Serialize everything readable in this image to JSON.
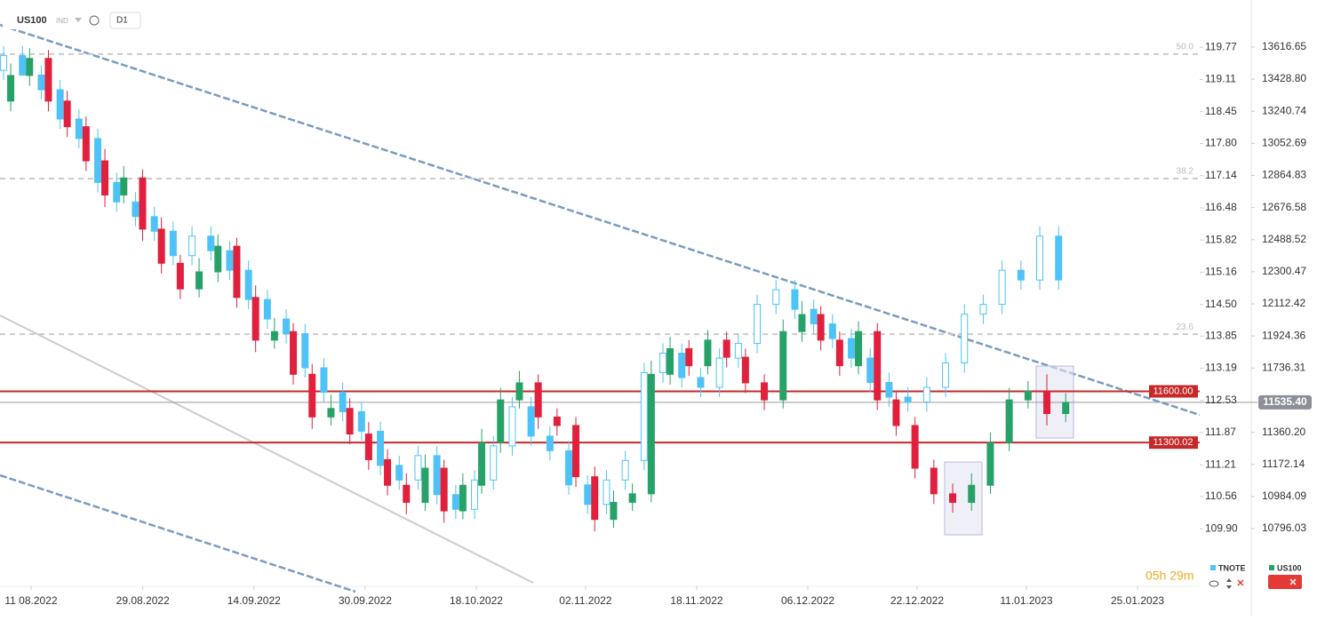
{
  "chart_data": {
    "type": "candlestick",
    "symbol": "US100",
    "market": "IND",
    "timeframe": "D1",
    "countdown": "05h 29m",
    "xlim": [
      -0.38,
      63.3
    ],
    "xticks": [
      {
        "value": 1.27,
        "label": "11 08.2022"
      },
      {
        "value": 7.2,
        "label": "29.08.2022"
      },
      {
        "value": 13.1,
        "label": "14.09.2022"
      },
      {
        "value": 19.0,
        "label": "30.09.2022"
      },
      {
        "value": 24.9,
        "label": "18.10.2022"
      },
      {
        "value": 30.7,
        "label": "02.11.2022"
      },
      {
        "value": 36.6,
        "label": "18.11.2022"
      },
      {
        "value": 42.5,
        "label": "06.12.2022"
      },
      {
        "value": 48.3,
        "label": "22.12.2022"
      },
      {
        "value": 54.1,
        "label": "11.01.2023"
      },
      {
        "value": 60.0,
        "label": "25.01.2023"
      }
    ],
    "ylim": [
      10458,
      13892
    ],
    "yticks": [
      13616.65,
      {
        "value": 13428.8,
        "label": "13428.80"
      },
      13240.74,
      13052.69,
      12864.83,
      12676.58,
      12488.52,
      12300.47,
      12112.42,
      11924.36,
      11736.31,
      {
        "value": 11360.2,
        "label": "11360.20"
      },
      11172.14,
      10984.09,
      10796.03
    ],
    "y2lim": [
      108.72,
      120.74
    ],
    "y2ticks": [
      119.77,
      119.11,
      118.45,
      {
        "value": 117.8,
        "label": "117.80"
      },
      117.14,
      116.48,
      115.82,
      115.16,
      {
        "value": 114.5,
        "label": "114.50"
      },
      113.85,
      113.19,
      112.53,
      111.87,
      111.21,
      110.56,
      {
        "value": 109.9,
        "label": "109.90"
      }
    ],
    "grid": false,
    "levels": [
      {
        "value": 11600,
        "label": "11600.00",
        "color": "#c62828"
      },
      {
        "value": 11300.02,
        "label": "11300.02",
        "color": "#c62828"
      }
    ],
    "last_price": {
      "value": 11535.4,
      "label": "11535.40"
    },
    "fib_levels": [
      {
        "level": 13575,
        "label": "50.0"
      },
      {
        "level": 12846,
        "label": "38.2"
      },
      {
        "level": 11935,
        "label": "23.6"
      }
    ],
    "series": [
      {
        "name": "TNOTE",
        "axis": "y2",
        "color": "#4fc3f7",
        "open": [
          119.3,
          119.6,
          119.2,
          118.9,
          118.3,
          117.9,
          117.0,
          116.6,
          116.3,
          116.0,
          115.5,
          115.9,
          115.6,
          115.2,
          114.6,
          114.2,
          113.9,
          113.2,
          112.7,
          112.3,
          111.9,
          111.2,
          110.9,
          111.4,
          110.6,
          110.3,
          110.9,
          111.6,
          112.4,
          111.8,
          111.5,
          110.8,
          110.4,
          110.9,
          111.3,
          113.1,
          113.5,
          113.0,
          112.8,
          113.4,
          113.7,
          114.5,
          114.8,
          114.4,
          114.1,
          113.8,
          113.4,
          112.9,
          112.6,
          112.5,
          112.8,
          113.3,
          114.3,
          114.5,
          115.2,
          115.0,
          115.9
        ],
        "high": [
          119.8,
          119.8,
          119.4,
          119.1,
          118.5,
          118.1,
          117.2,
          116.8,
          116.5,
          116.2,
          116.1,
          116.1,
          115.8,
          115.4,
          114.8,
          114.4,
          114.1,
          113.4,
          112.9,
          112.5,
          112.1,
          111.4,
          111.6,
          111.6,
          110.8,
          111.1,
          111.8,
          112.6,
          112.6,
          112.0,
          111.7,
          111.0,
          111.1,
          111.5,
          113.3,
          113.7,
          113.7,
          113.2,
          113.6,
          113.9,
          114.7,
          115.0,
          115.0,
          114.6,
          114.3,
          114.0,
          113.6,
          113.1,
          112.8,
          113.0,
          113.5,
          114.5,
          114.7,
          115.4,
          115.4,
          116.1,
          116.1
        ],
        "low": [
          119.1,
          119.4,
          118.7,
          118.1,
          117.7,
          116.8,
          116.4,
          116.1,
          115.8,
          115.3,
          115.3,
          115.4,
          115.0,
          114.4,
          114.0,
          113.7,
          113.0,
          112.5,
          112.1,
          111.7,
          111.0,
          110.7,
          110.7,
          110.4,
          110.1,
          110.1,
          110.7,
          111.4,
          111.6,
          111.3,
          110.6,
          110.2,
          110.2,
          110.7,
          111.1,
          112.9,
          112.8,
          112.6,
          112.6,
          113.2,
          113.5,
          114.3,
          114.2,
          113.9,
          113.6,
          113.2,
          112.7,
          112.4,
          112.3,
          112.3,
          112.6,
          113.1,
          114.1,
          114.3,
          114.8,
          114.8,
          114.8
        ],
        "close": [
          119.6,
          119.2,
          118.9,
          118.3,
          117.9,
          117.0,
          116.6,
          116.3,
          116.0,
          115.5,
          115.9,
          115.6,
          115.2,
          114.6,
          114.2,
          113.9,
          113.2,
          112.7,
          112.3,
          111.9,
          111.2,
          110.9,
          111.4,
          110.6,
          110.3,
          110.9,
          111.6,
          112.4,
          111.8,
          111.5,
          110.8,
          110.4,
          110.9,
          111.3,
          113.1,
          113.5,
          113.0,
          112.8,
          113.4,
          113.7,
          114.5,
          114.8,
          114.4,
          114.1,
          113.8,
          113.4,
          112.9,
          112.6,
          112.5,
          112.8,
          113.3,
          114.3,
          114.5,
          115.2,
          115.0,
          115.9,
          115.0
        ]
      },
      {
        "name": "US100",
        "axis": "y",
        "color": "#26a269",
        "down_color": "#e0203c",
        "open": [
          13300,
          13450,
          13550,
          13300,
          13150,
          12950,
          12750,
          12850,
          12550,
          12350,
          12200,
          12300,
          12450,
          12150,
          11900,
          11950,
          11700,
          11450,
          11500,
          11350,
          11200,
          11050,
          10950,
          11150,
          10900,
          11050,
          11300,
          11550,
          11650,
          11450,
          11400,
          11100,
          10850,
          10950,
          11000,
          11700,
          11850,
          11750,
          11900,
          11800,
          11650,
          11550,
          11950,
          12050,
          11900,
          11750,
          11950,
          11550,
          11400,
          11150,
          11000,
          10950,
          11050,
          11300,
          11550,
          11600,
          11470
        ],
        "high": [
          13520,
          13610,
          13600,
          13360,
          13210,
          13020,
          12920,
          12900,
          12620,
          12400,
          12380,
          12520,
          12500,
          12220,
          12030,
          12000,
          11760,
          11580,
          11560,
          11420,
          11260,
          11120,
          11230,
          11200,
          11120,
          11380,
          11620,
          11720,
          11700,
          11500,
          11450,
          11160,
          11020,
          11060,
          11780,
          11920,
          11900,
          11960,
          11950,
          11850,
          11700,
          12020,
          12130,
          12100,
          11950,
          12010,
          12000,
          11600,
          11450,
          11200,
          11060,
          11120,
          11360,
          11620,
          11660,
          11700,
          11590
        ],
        "low": [
          13240,
          13390,
          13240,
          13090,
          12890,
          12680,
          12700,
          12480,
          12290,
          12140,
          12150,
          12240,
          12090,
          11830,
          11850,
          11640,
          11380,
          11400,
          11290,
          11140,
          10990,
          10880,
          10900,
          10830,
          10850,
          11000,
          11240,
          11500,
          11380,
          11340,
          11040,
          10780,
          10800,
          10900,
          10950,
          11640,
          11690,
          11700,
          11740,
          11590,
          11490,
          11500,
          11890,
          11840,
          11690,
          11700,
          11490,
          11340,
          11090,
          10940,
          10890,
          10900,
          11000,
          11250,
          11500,
          11400,
          11420
        ],
        "close": [
          13450,
          13550,
          13300,
          13150,
          12950,
          12750,
          12850,
          12550,
          12350,
          12200,
          12300,
          12450,
          12150,
          11900,
          11950,
          11700,
          11450,
          11500,
          11350,
          11200,
          11050,
          10950,
          11150,
          10900,
          11050,
          11300,
          11550,
          11650,
          11450,
          11400,
          11100,
          10850,
          10950,
          11000,
          11700,
          11850,
          11750,
          11900,
          11800,
          11650,
          11550,
          11950,
          12050,
          11900,
          11750,
          11950,
          11550,
          11400,
          11150,
          11000,
          10950,
          11050,
          11300,
          11550,
          11600,
          11470,
          11535.4
        ]
      }
    ]
  }
}
